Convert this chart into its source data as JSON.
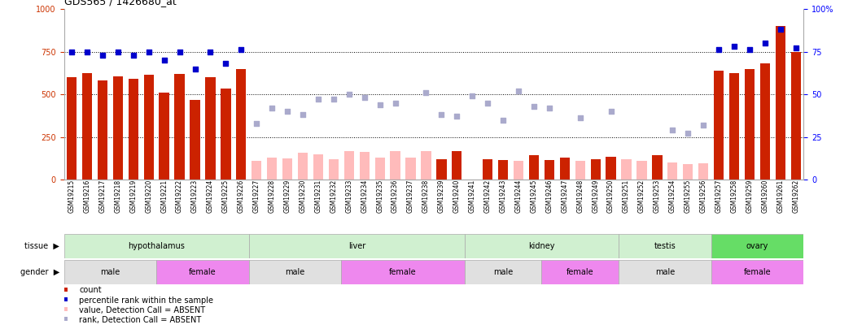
{
  "title": "GDS565 / 1426680_at",
  "samples": [
    "GSM19215",
    "GSM19216",
    "GSM19217",
    "GSM19218",
    "GSM19219",
    "GSM19220",
    "GSM19221",
    "GSM19222",
    "GSM19223",
    "GSM19224",
    "GSM19225",
    "GSM19226",
    "GSM19227",
    "GSM19228",
    "GSM19229",
    "GSM19230",
    "GSM19231",
    "GSM19232",
    "GSM19233",
    "GSM19234",
    "GSM19235",
    "GSM19236",
    "GSM19237",
    "GSM19238",
    "GSM19239",
    "GSM19240",
    "GSM19241",
    "GSM19242",
    "GSM19243",
    "GSM19244",
    "GSM19245",
    "GSM19246",
    "GSM19247",
    "GSM19248",
    "GSM19249",
    "GSM19250",
    "GSM19251",
    "GSM19252",
    "GSM19253",
    "GSM19254",
    "GSM19255",
    "GSM19256",
    "GSM19257",
    "GSM19258",
    "GSM19259",
    "GSM19260",
    "GSM19261",
    "GSM19262"
  ],
  "count_present": [
    600,
    625,
    580,
    605,
    590,
    615,
    510,
    620,
    465,
    600,
    535,
    650,
    null,
    null,
    null,
    null,
    null,
    null,
    null,
    null,
    null,
    null,
    null,
    null,
    120,
    165,
    null,
    120,
    115,
    null,
    145,
    115,
    130,
    null,
    120,
    135,
    null,
    null,
    145,
    null,
    null,
    null,
    640,
    625,
    650,
    680,
    900,
    750
  ],
  "count_absent": [
    null,
    null,
    null,
    null,
    null,
    null,
    null,
    null,
    null,
    null,
    null,
    null,
    110,
    130,
    125,
    155,
    150,
    120,
    165,
    160,
    130,
    165,
    130,
    165,
    null,
    null,
    null,
    null,
    null,
    110,
    null,
    null,
    null,
    110,
    null,
    null,
    120,
    110,
    null,
    100,
    90,
    95,
    null,
    null,
    null,
    null,
    null,
    null
  ],
  "rank_present": [
    75,
    75,
    73,
    75,
    73,
    75,
    70,
    75,
    65,
    75,
    68,
    76,
    null,
    null,
    null,
    null,
    null,
    null,
    null,
    null,
    null,
    null,
    null,
    null,
    null,
    null,
    null,
    null,
    null,
    null,
    null,
    null,
    null,
    null,
    null,
    null,
    null,
    null,
    null,
    null,
    null,
    null,
    76,
    78,
    76,
    80,
    88,
    77
  ],
  "rank_absent": [
    null,
    null,
    null,
    null,
    null,
    null,
    null,
    null,
    null,
    null,
    null,
    null,
    33,
    42,
    40,
    38,
    47,
    47,
    50,
    48,
    44,
    45,
    null,
    51,
    38,
    37,
    49,
    45,
    35,
    52,
    43,
    42,
    null,
    36,
    null,
    40,
    null,
    null,
    null,
    29,
    27,
    32,
    null,
    null,
    null,
    null,
    null,
    null
  ],
  "tissue_groups": [
    {
      "label": "hypothalamus",
      "start": 0,
      "end": 12,
      "color": "#d0f0d0"
    },
    {
      "label": "liver",
      "start": 12,
      "end": 26,
      "color": "#d0f0d0"
    },
    {
      "label": "kidney",
      "start": 26,
      "end": 36,
      "color": "#d0f0d0"
    },
    {
      "label": "testis",
      "start": 36,
      "end": 42,
      "color": "#d0f0d0"
    },
    {
      "label": "ovary",
      "start": 42,
      "end": 48,
      "color": "#66dd66"
    }
  ],
  "gender_groups": [
    {
      "label": "male",
      "start": 0,
      "end": 6,
      "color": "#e0e0e0"
    },
    {
      "label": "female",
      "start": 6,
      "end": 12,
      "color": "#ee88ee"
    },
    {
      "label": "male",
      "start": 12,
      "end": 18,
      "color": "#e0e0e0"
    },
    {
      "label": "female",
      "start": 18,
      "end": 26,
      "color": "#ee88ee"
    },
    {
      "label": "male",
      "start": 26,
      "end": 31,
      "color": "#e0e0e0"
    },
    {
      "label": "female",
      "start": 31,
      "end": 36,
      "color": "#ee88ee"
    },
    {
      "label": "male",
      "start": 36,
      "end": 42,
      "color": "#e0e0e0"
    },
    {
      "label": "female",
      "start": 42,
      "end": 48,
      "color": "#ee88ee"
    }
  ],
  "bar_color_present": "#cc2200",
  "bar_color_absent": "#ffbbbb",
  "dot_color_present": "#0000cc",
  "dot_color_absent": "#aaaacc",
  "background_color": "#ffffff",
  "legend_items": [
    {
      "color": "#cc2200",
      "label": "count"
    },
    {
      "color": "#0000cc",
      "label": "percentile rank within the sample"
    },
    {
      "color": "#ffbbbb",
      "label": "value, Detection Call = ABSENT"
    },
    {
      "color": "#aaaacc",
      "label": "rank, Detection Call = ABSENT"
    }
  ]
}
